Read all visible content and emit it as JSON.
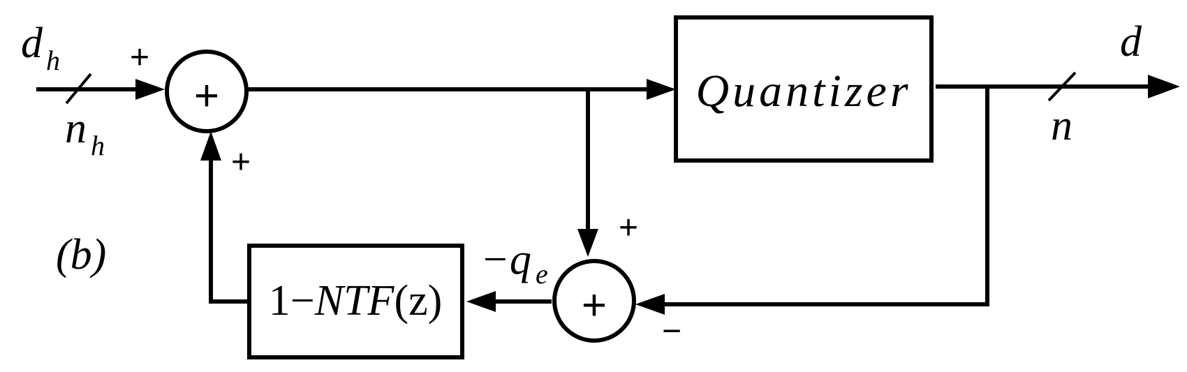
{
  "labels": {
    "input_signal": "d",
    "input_signal_sub": "h",
    "input_width": "n",
    "input_width_sub": "h",
    "output_signal": "d",
    "output_width": "n",
    "quantizer": "Quantizer",
    "filter_prefix": "1−",
    "filter_name": "NTF",
    "filter_arg": "(z)",
    "error_signal_prefix": "−q",
    "error_signal_sub": "e",
    "panel_label": "(b)",
    "sum_symbol": "+",
    "sign_plus": "+",
    "sign_minus": "−"
  }
}
